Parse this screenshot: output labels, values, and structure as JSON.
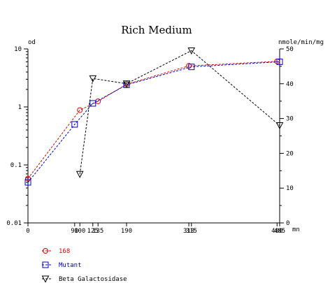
{
  "chart_data": {
    "type": "line",
    "title": "Rich Medium",
    "xlabel": "mn",
    "ylabel_left": "od",
    "ylabel_right": "nmole/min/mg",
    "x_ticks": [
      "0",
      "90",
      "100",
      "125",
      "135",
      "190",
      "310",
      "315",
      "480",
      "485"
    ],
    "xlim": [
      0,
      485
    ],
    "y_left": {
      "scale": "log",
      "ylim": [
        0.01,
        10
      ],
      "ticks": [
        "0.01",
        "0.1",
        "1",
        "10"
      ]
    },
    "y_right": {
      "scale": "linear",
      "ylim": [
        0,
        50
      ],
      "ticks": [
        "0",
        "10",
        "20",
        "30",
        "40",
        "50"
      ]
    },
    "grid": false,
    "legend_position": "bottom-left",
    "series": [
      {
        "name": "168",
        "axis": "left",
        "color": "#e00000",
        "marker": "circle",
        "x": [
          0,
          100,
          135,
          190,
          310,
          480
        ],
        "y": [
          0.058,
          0.88,
          1.25,
          2.45,
          5.1,
          6.1
        ]
      },
      {
        "name": "Mutant",
        "axis": "left",
        "color": "#0000cc",
        "marker": "square",
        "x": [
          0,
          90,
          125,
          190,
          315,
          485
        ],
        "y": [
          0.05,
          0.5,
          1.15,
          2.4,
          4.9,
          6.0
        ]
      },
      {
        "name": "Beta Galactosidase",
        "axis": "right",
        "color": "#000000",
        "marker": "triangle-down",
        "x": [
          100,
          125,
          190,
          315,
          485
        ],
        "y": [
          14,
          41.5,
          40,
          49.5,
          28
        ]
      }
    ]
  }
}
